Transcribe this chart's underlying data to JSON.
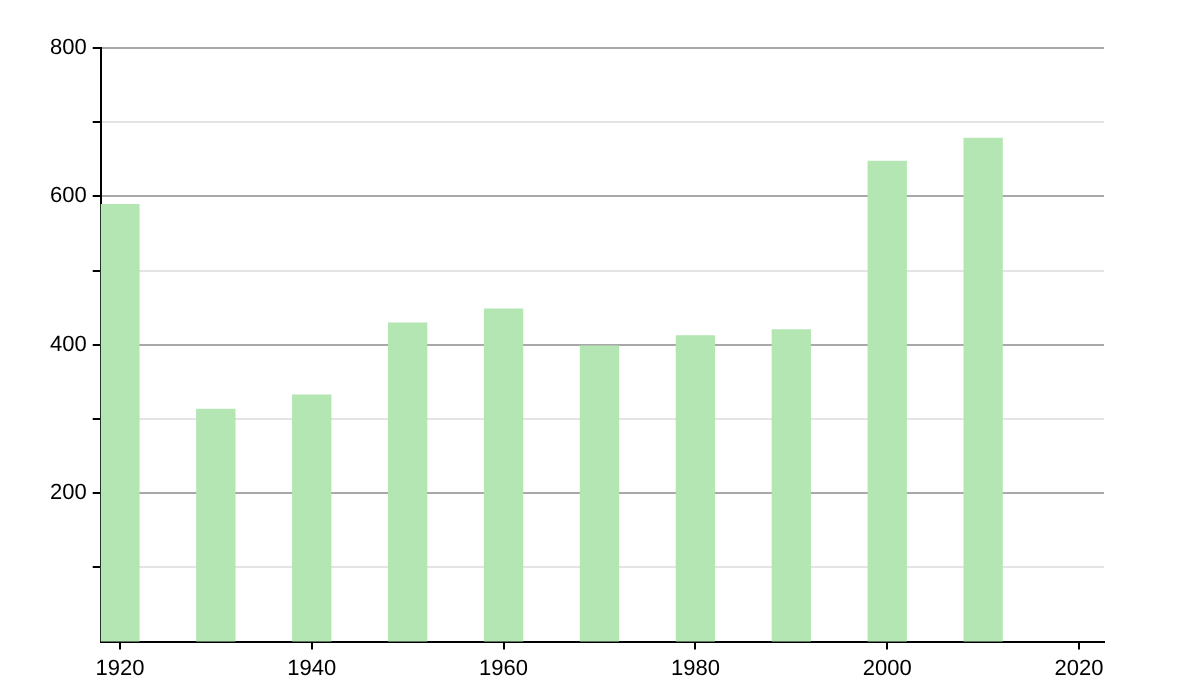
{
  "chart_data": {
    "type": "bar",
    "x": [
      1920,
      1930,
      1940,
      1950,
      1960,
      1970,
      1980,
      1990,
      2000,
      2010
    ],
    "values": [
      589,
      313,
      332,
      429,
      448,
      398,
      412,
      420,
      647,
      678
    ],
    "color": "#b3e6b3",
    "xlim": [
      1918,
      2022.6
    ],
    "xticks": [
      1920,
      1940,
      1960,
      1980,
      2000,
      2020
    ],
    "ylim": [
      0,
      800
    ],
    "yticks": [
      {
        "value": 100,
        "label": null
      },
      200,
      {
        "value": 300,
        "label": null
      },
      400,
      {
        "value": 500,
        "label": null
      },
      600,
      {
        "value": 700,
        "label": null
      },
      800
    ],
    "grid": "y",
    "legend": false
  }
}
